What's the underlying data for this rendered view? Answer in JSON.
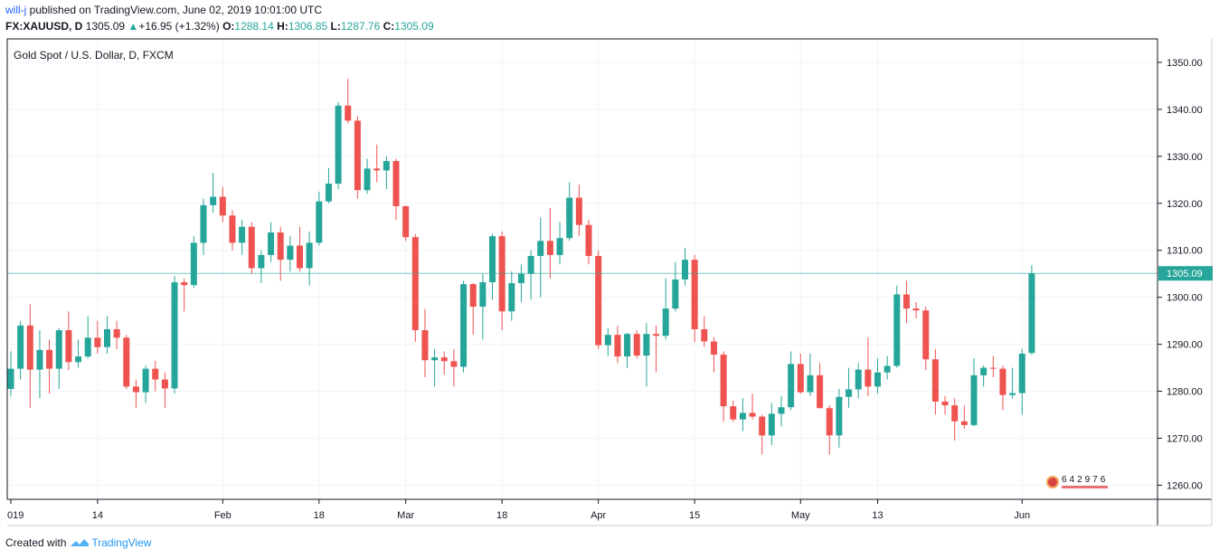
{
  "header": {
    "user": "will-j",
    "published_text": "published on TradingView.com, June 02, 2019 10:01:00 UTC",
    "symbol": "FX:XAUUSD, D",
    "last": "1305.09",
    "change_icon": "triangle-up-icon",
    "change": "+16.95 (+1.32%)",
    "open_label": "O:",
    "open": "1288.14",
    "high_label": "H:",
    "high": "1306.85",
    "low_label": "L:",
    "low": "1287.76",
    "close_label": "C:",
    "close": "1305.09"
  },
  "footer": {
    "created_with": "Created with",
    "brand": "TradingView"
  },
  "counter": {
    "digits": "642976"
  },
  "colors": {
    "up": "#26a69a",
    "down": "#ef5350",
    "grid": "#f0f3fa",
    "axis": "#131722",
    "price_line": "#26a69a"
  },
  "chart_data": {
    "type": "candlestick",
    "title": "Gold Spot / U.S. Dollar, D, FXCM",
    "last_price_label": "1305.09",
    "ylim": [
      1257,
      1355
    ],
    "y_ticks": [
      1260,
      1270,
      1280,
      1290,
      1300,
      1310,
      1320,
      1330,
      1340,
      1350
    ],
    "y_tick_labels": [
      "1260.00",
      "1270.00",
      "1280.00",
      "1290.00",
      "1300.00",
      "1310.00",
      "1320.00",
      "1330.00",
      "1340.00",
      "1350.00"
    ],
    "x_tick_labels": [
      {
        "label": "019",
        "index": 0
      },
      {
        "label": "14",
        "index": 9
      },
      {
        "label": "Feb",
        "index": 22
      },
      {
        "label": "18",
        "index": 32
      },
      {
        "label": "Mar",
        "index": 41
      },
      {
        "label": "18",
        "index": 51
      },
      {
        "label": "Apr",
        "index": 61
      },
      {
        "label": "15",
        "index": 71
      },
      {
        "label": "May",
        "index": 82
      },
      {
        "label": "13",
        "index": 90
      },
      {
        "label": "Jun",
        "index": 105
      }
    ],
    "total_slots": 113,
    "grid": true,
    "candles": [
      {
        "o": 1280.5,
        "h": 1288.5,
        "l": 1279.0,
        "c": 1284.8
      },
      {
        "o": 1284.8,
        "h": 1295.0,
        "l": 1282.5,
        "c": 1294.0
      },
      {
        "o": 1294.0,
        "h": 1298.5,
        "l": 1276.5,
        "c": 1284.6
      },
      {
        "o": 1284.6,
        "h": 1293.0,
        "l": 1278.5,
        "c": 1288.8
      },
      {
        "o": 1288.8,
        "h": 1291.0,
        "l": 1279.5,
        "c": 1284.8
      },
      {
        "o": 1284.8,
        "h": 1293.5,
        "l": 1280.5,
        "c": 1293.0
      },
      {
        "o": 1293.0,
        "h": 1297.0,
        "l": 1284.5,
        "c": 1286.2
      },
      {
        "o": 1286.2,
        "h": 1291.0,
        "l": 1285.0,
        "c": 1287.4
      },
      {
        "o": 1287.4,
        "h": 1296.0,
        "l": 1287.0,
        "c": 1291.4
      },
      {
        "o": 1291.4,
        "h": 1295.0,
        "l": 1288.0,
        "c": 1289.4
      },
      {
        "o": 1289.4,
        "h": 1296.0,
        "l": 1288.0,
        "c": 1293.2
      },
      {
        "o": 1293.2,
        "h": 1295.0,
        "l": 1289.0,
        "c": 1291.4
      },
      {
        "o": 1291.4,
        "h": 1292.0,
        "l": 1280.5,
        "c": 1281.0
      },
      {
        "o": 1281.0,
        "h": 1282.5,
        "l": 1276.5,
        "c": 1279.8
      },
      {
        "o": 1279.8,
        "h": 1285.5,
        "l": 1277.5,
        "c": 1284.8
      },
      {
        "o": 1284.8,
        "h": 1286.5,
        "l": 1280.0,
        "c": 1282.5
      },
      {
        "o": 1282.5,
        "h": 1284.0,
        "l": 1276.5,
        "c": 1280.6
      },
      {
        "o": 1280.6,
        "h": 1304.5,
        "l": 1279.5,
        "c": 1303.2
      },
      {
        "o": 1303.2,
        "h": 1304.0,
        "l": 1297.0,
        "c": 1302.6
      },
      {
        "o": 1302.6,
        "h": 1313.0,
        "l": 1302.0,
        "c": 1311.6
      },
      {
        "o": 1311.6,
        "h": 1321.0,
        "l": 1309.0,
        "c": 1319.6
      },
      {
        "o": 1319.6,
        "h": 1326.5,
        "l": 1318.0,
        "c": 1321.4
      },
      {
        "o": 1321.4,
        "h": 1323.5,
        "l": 1316.0,
        "c": 1317.4
      },
      {
        "o": 1317.4,
        "h": 1318.5,
        "l": 1310.0,
        "c": 1311.6
      },
      {
        "o": 1311.6,
        "h": 1316.5,
        "l": 1309.0,
        "c": 1315.0
      },
      {
        "o": 1315.0,
        "h": 1316.0,
        "l": 1305.0,
        "c": 1306.2
      },
      {
        "o": 1306.2,
        "h": 1310.0,
        "l": 1303.0,
        "c": 1309.0
      },
      {
        "o": 1309.0,
        "h": 1316.0,
        "l": 1307.5,
        "c": 1313.8
      },
      {
        "o": 1313.8,
        "h": 1315.0,
        "l": 1303.5,
        "c": 1308.0
      },
      {
        "o": 1308.0,
        "h": 1313.0,
        "l": 1305.5,
        "c": 1311.0
      },
      {
        "o": 1311.0,
        "h": 1315.0,
        "l": 1305.5,
        "c": 1306.2
      },
      {
        "o": 1306.2,
        "h": 1314.0,
        "l": 1302.5,
        "c": 1311.6
      },
      {
        "o": 1311.6,
        "h": 1322.5,
        "l": 1311.0,
        "c": 1320.4
      },
      {
        "o": 1320.4,
        "h": 1327.5,
        "l": 1320.0,
        "c": 1324.2
      },
      {
        "o": 1324.2,
        "h": 1341.5,
        "l": 1323.0,
        "c": 1340.8
      },
      {
        "o": 1340.8,
        "h": 1346.5,
        "l": 1337.0,
        "c": 1337.6
      },
      {
        "o": 1337.6,
        "h": 1338.5,
        "l": 1321.0,
        "c": 1322.8
      },
      {
        "o": 1322.8,
        "h": 1329.5,
        "l": 1322.0,
        "c": 1327.4
      },
      {
        "o": 1327.4,
        "h": 1332.5,
        "l": 1324.5,
        "c": 1327.0
      },
      {
        "o": 1327.0,
        "h": 1330.0,
        "l": 1323.0,
        "c": 1329.0
      },
      {
        "o": 1329.0,
        "h": 1329.5,
        "l": 1316.5,
        "c": 1319.4
      },
      {
        "o": 1319.4,
        "h": 1319.5,
        "l": 1312.0,
        "c": 1312.8
      },
      {
        "o": 1312.8,
        "h": 1313.5,
        "l": 1290.5,
        "c": 1293.0
      },
      {
        "o": 1293.0,
        "h": 1297.5,
        "l": 1283.0,
        "c": 1286.6
      },
      {
        "o": 1286.6,
        "h": 1289.0,
        "l": 1281.0,
        "c": 1287.2
      },
      {
        "o": 1287.2,
        "h": 1288.5,
        "l": 1283.5,
        "c": 1286.4
      },
      {
        "o": 1286.4,
        "h": 1289.0,
        "l": 1281.0,
        "c": 1285.2
      },
      {
        "o": 1285.2,
        "h": 1303.5,
        "l": 1284.0,
        "c": 1302.8
      },
      {
        "o": 1302.8,
        "h": 1303.0,
        "l": 1292.0,
        "c": 1298.0
      },
      {
        "o": 1298.0,
        "h": 1305.0,
        "l": 1291.0,
        "c": 1303.2
      },
      {
        "o": 1303.2,
        "h": 1313.5,
        "l": 1299.5,
        "c": 1313.0
      },
      {
        "o": 1313.0,
        "h": 1314.0,
        "l": 1293.0,
        "c": 1297.0
      },
      {
        "o": 1297.0,
        "h": 1305.5,
        "l": 1295.0,
        "c": 1303.0
      },
      {
        "o": 1303.0,
        "h": 1307.0,
        "l": 1299.0,
        "c": 1305.0
      },
      {
        "o": 1305.0,
        "h": 1310.0,
        "l": 1299.5,
        "c": 1308.8
      },
      {
        "o": 1308.8,
        "h": 1317.0,
        "l": 1300.0,
        "c": 1312.0
      },
      {
        "o": 1312.0,
        "h": 1319.0,
        "l": 1304.0,
        "c": 1309.0
      },
      {
        "o": 1309.0,
        "h": 1316.0,
        "l": 1307.0,
        "c": 1312.6
      },
      {
        "o": 1312.6,
        "h": 1324.5,
        "l": 1312.0,
        "c": 1321.2
      },
      {
        "o": 1321.2,
        "h": 1324.0,
        "l": 1313.0,
        "c": 1315.4
      },
      {
        "o": 1315.4,
        "h": 1316.5,
        "l": 1307.0,
        "c": 1308.8
      },
      {
        "o": 1308.8,
        "h": 1310.0,
        "l": 1289.0,
        "c": 1289.8
      },
      {
        "o": 1289.8,
        "h": 1293.5,
        "l": 1287.5,
        "c": 1292.0
      },
      {
        "o": 1292.0,
        "h": 1294.0,
        "l": 1286.0,
        "c": 1287.4
      },
      {
        "o": 1287.4,
        "h": 1292.5,
        "l": 1285.0,
        "c": 1292.2
      },
      {
        "o": 1292.2,
        "h": 1293.0,
        "l": 1287.0,
        "c": 1287.6
      },
      {
        "o": 1287.6,
        "h": 1294.5,
        "l": 1281.0,
        "c": 1292.2
      },
      {
        "o": 1292.2,
        "h": 1294.0,
        "l": 1284.0,
        "c": 1291.8
      },
      {
        "o": 1291.8,
        "h": 1304.0,
        "l": 1291.0,
        "c": 1297.6
      },
      {
        "o": 1297.6,
        "h": 1307.5,
        "l": 1297.0,
        "c": 1303.8
      },
      {
        "o": 1303.8,
        "h": 1310.5,
        "l": 1302.5,
        "c": 1308.0
      },
      {
        "o": 1308.0,
        "h": 1309.0,
        "l": 1290.5,
        "c": 1293.2
      },
      {
        "o": 1293.2,
        "h": 1296.0,
        "l": 1289.5,
        "c": 1290.6
      },
      {
        "o": 1290.6,
        "h": 1291.5,
        "l": 1284.0,
        "c": 1287.8
      },
      {
        "o": 1287.8,
        "h": 1288.5,
        "l": 1273.5,
        "c": 1276.8
      },
      {
        "o": 1276.8,
        "h": 1278.0,
        "l": 1273.5,
        "c": 1274.0
      },
      {
        "o": 1274.0,
        "h": 1278.5,
        "l": 1271.5,
        "c": 1275.4
      },
      {
        "o": 1275.4,
        "h": 1279.5,
        "l": 1274.0,
        "c": 1274.6
      },
      {
        "o": 1274.6,
        "h": 1275.0,
        "l": 1266.5,
        "c": 1270.6
      },
      {
        "o": 1270.6,
        "h": 1277.5,
        "l": 1268.5,
        "c": 1275.2
      },
      {
        "o": 1275.2,
        "h": 1279.0,
        "l": 1272.5,
        "c": 1276.6
      },
      {
        "o": 1276.6,
        "h": 1288.5,
        "l": 1276.0,
        "c": 1285.8
      },
      {
        "o": 1285.8,
        "h": 1288.0,
        "l": 1279.5,
        "c": 1279.8
      },
      {
        "o": 1279.8,
        "h": 1288.0,
        "l": 1279.0,
        "c": 1283.4
      },
      {
        "o": 1283.4,
        "h": 1286.0,
        "l": 1277.0,
        "c": 1276.4
      },
      {
        "o": 1276.4,
        "h": 1277.0,
        "l": 1266.5,
        "c": 1270.6
      },
      {
        "o": 1270.6,
        "h": 1280.5,
        "l": 1268.0,
        "c": 1278.8
      },
      {
        "o": 1278.8,
        "h": 1285.0,
        "l": 1276.5,
        "c": 1280.4
      },
      {
        "o": 1280.4,
        "h": 1286.0,
        "l": 1278.5,
        "c": 1284.6
      },
      {
        "o": 1284.6,
        "h": 1291.5,
        "l": 1279.0,
        "c": 1281.0
      },
      {
        "o": 1281.0,
        "h": 1287.0,
        "l": 1279.5,
        "c": 1284.0
      },
      {
        "o": 1284.0,
        "h": 1287.5,
        "l": 1282.5,
        "c": 1285.4
      },
      {
        "o": 1285.4,
        "h": 1302.5,
        "l": 1285.0,
        "c": 1300.6
      },
      {
        "o": 1300.6,
        "h": 1303.5,
        "l": 1294.5,
        "c": 1297.6
      },
      {
        "o": 1297.6,
        "h": 1299.0,
        "l": 1295.5,
        "c": 1297.2
      },
      {
        "o": 1297.2,
        "h": 1298.0,
        "l": 1284.5,
        "c": 1286.8
      },
      {
        "o": 1286.8,
        "h": 1289.0,
        "l": 1275.0,
        "c": 1277.8
      },
      {
        "o": 1277.8,
        "h": 1279.0,
        "l": 1275.0,
        "c": 1277.0
      },
      {
        "o": 1277.0,
        "h": 1278.5,
        "l": 1269.5,
        "c": 1273.6
      },
      {
        "o": 1273.6,
        "h": 1277.0,
        "l": 1272.0,
        "c": 1272.8
      },
      {
        "o": 1272.8,
        "h": 1287.0,
        "l": 1272.5,
        "c": 1283.4
      },
      {
        "o": 1283.4,
        "h": 1285.5,
        "l": 1281.0,
        "c": 1285.0
      },
      {
        "o": 1285.0,
        "h": 1287.5,
        "l": 1283.0,
        "c": 1284.8
      },
      {
        "o": 1284.8,
        "h": 1285.5,
        "l": 1276.0,
        "c": 1279.2
      },
      {
        "o": 1279.2,
        "h": 1285.0,
        "l": 1278.5,
        "c": 1279.6
      },
      {
        "o": 1279.6,
        "h": 1289.0,
        "l": 1275.0,
        "c": 1288.0
      },
      {
        "o": 1288.14,
        "h": 1306.85,
        "l": 1287.76,
        "c": 1305.09
      }
    ]
  }
}
